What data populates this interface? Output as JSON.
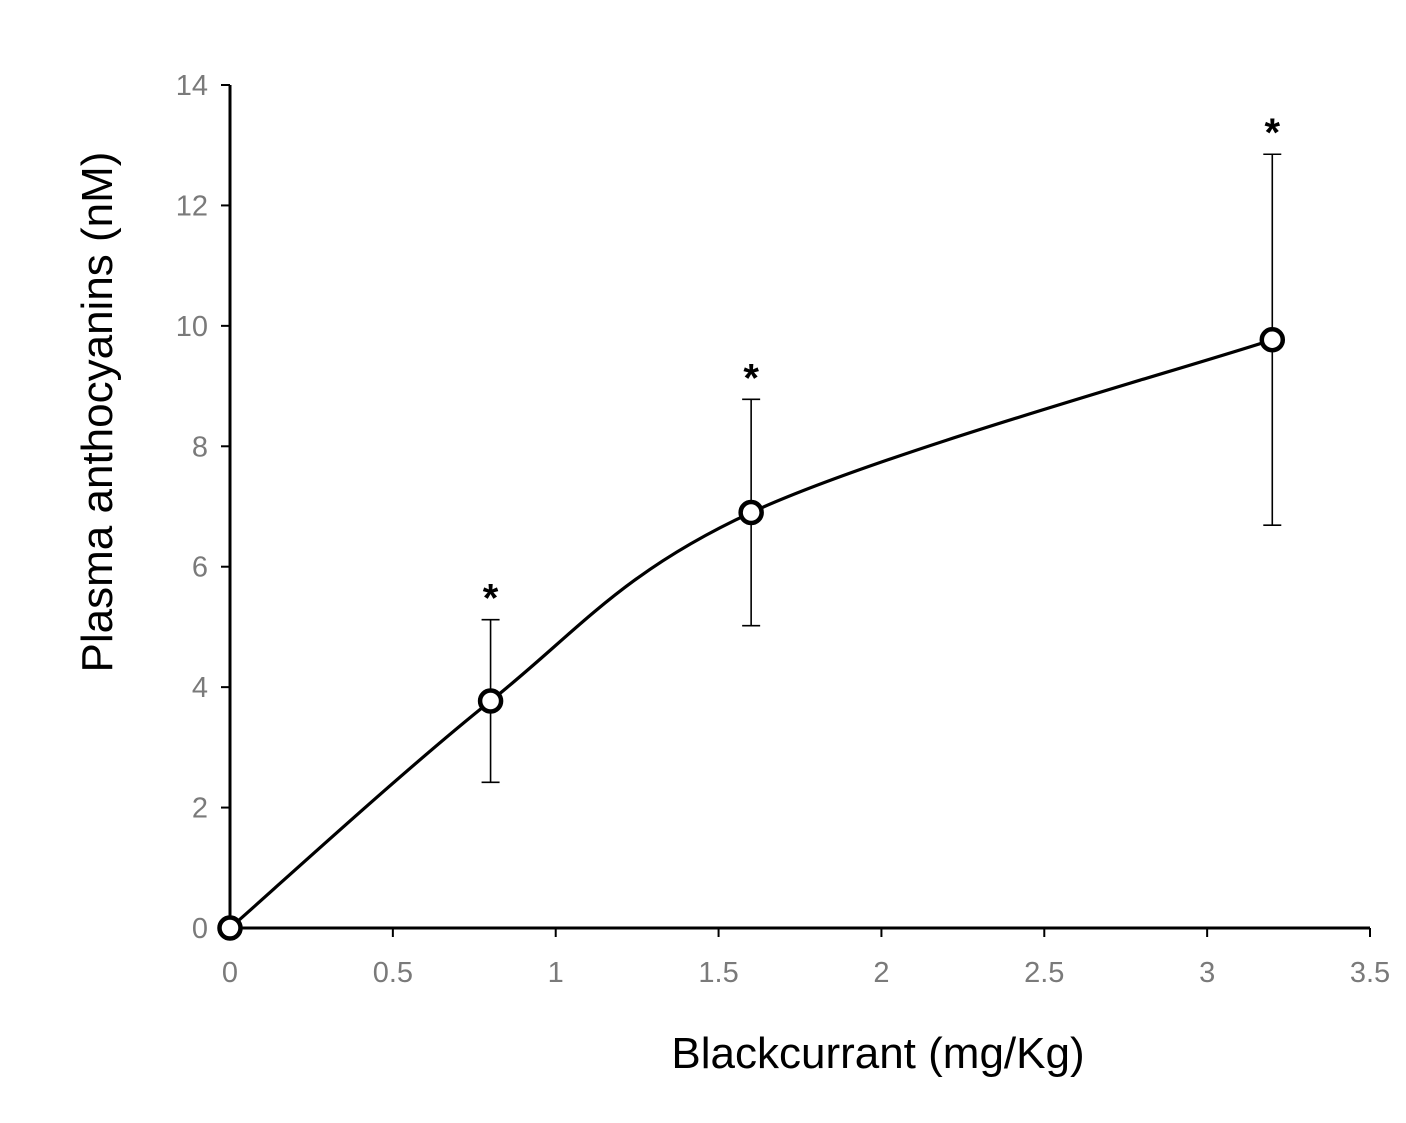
{
  "chart_data": {
    "type": "line",
    "xlabel": "Blackcurrant (mg/Kg)",
    "ylabel": "Plasma anthocyanins (nM)",
    "xlim": [
      0,
      3.5
    ],
    "ylim": [
      0,
      14
    ],
    "x_ticks": [
      "0",
      "0.5",
      "1",
      "1.5",
      "2",
      "2.5",
      "3",
      "3.5"
    ],
    "y_ticks": [
      "0",
      "2",
      "4",
      "6",
      "8",
      "10",
      "12",
      "14"
    ],
    "grid": false,
    "smooth": true,
    "marker": "open-circle",
    "series": [
      {
        "x": [
          0,
          0.8,
          1.6,
          3.2
        ],
        "values": [
          0,
          3.77,
          6.9,
          9.77
        ],
        "error": [
          0,
          1.35,
          1.88,
          3.08
        ]
      }
    ],
    "annotations": [
      {
        "text": "*",
        "x": 0.8
      },
      {
        "text": "*",
        "x": 1.6
      },
      {
        "text": "*",
        "x": 3.2
      }
    ],
    "colors": {
      "line": "#000000",
      "axis": "#000000",
      "tick_label": "#7a7a7a",
      "marker_fill": "#ffffff"
    }
  }
}
